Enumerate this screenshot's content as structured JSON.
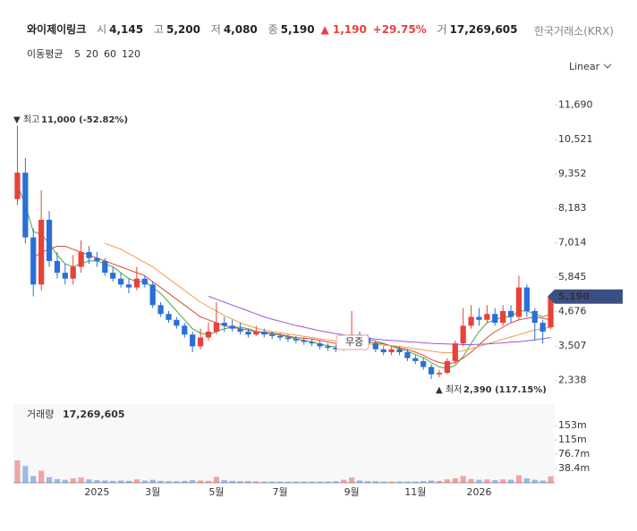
{
  "header": {
    "name": "와이제이링크",
    "open_label": "시",
    "open": "4,145",
    "high_label": "고",
    "high": "5,200",
    "low_label": "저",
    "low": "4,080",
    "close_label": "종",
    "close": "5,190",
    "change": "▲ 1,190",
    "change_pct": "+29.75%",
    "volume_label": "거",
    "volume": "17,269,605",
    "exchange": "한국거래소(KRX)",
    "ma_label": "이동평균",
    "scale": "Linear"
  },
  "chart_data": {
    "type": "candlestick",
    "categories": [
      null,
      null,
      null,
      null,
      null,
      null,
      null,
      null,
      null,
      null,
      "2025",
      null,
      null,
      null,
      null,
      null,
      null,
      "3월",
      null,
      null,
      null,
      null,
      null,
      null,
      null,
      "5월",
      null,
      null,
      null,
      null,
      null,
      null,
      null,
      "7월",
      null,
      null,
      null,
      null,
      null,
      null,
      null,
      null,
      "9월",
      null,
      null,
      null,
      null,
      null,
      null,
      null,
      "11월",
      null,
      null,
      null,
      null,
      null,
      null,
      null,
      "2026",
      null,
      null,
      null,
      null,
      null,
      null,
      null,
      null,
      null
    ],
    "open": [
      8500,
      9400,
      7200,
      5600,
      7800,
      6400,
      6000,
      5800,
      6200,
      6700,
      6500,
      6400,
      6000,
      5800,
      5600,
      5500,
      5800,
      5600,
      4900,
      4600,
      4400,
      4200,
      3900,
      3500,
      3800,
      4000,
      4300,
      4200,
      4100,
      4000,
      3900,
      4000,
      3900,
      3850,
      3800,
      3750,
      3700,
      3650,
      3600,
      3500,
      3450,
      3400,
      3700,
      3900,
      3800,
      3600,
      3400,
      3300,
      3400,
      3300,
      3100,
      3000,
      2800,
      2550,
      2600,
      3000,
      3600,
      4200,
      4500,
      4400,
      4600,
      4300,
      4700,
      4500,
      5500,
      4700,
      4300,
      4145
    ],
    "high": [
      11000,
      9900,
      7500,
      8800,
      8100,
      6700,
      6300,
      6600,
      7100,
      6900,
      6700,
      6500,
      6200,
      6000,
      5800,
      6200,
      5900,
      5700,
      5000,
      4700,
      4500,
      4300,
      4000,
      4100,
      4300,
      5000,
      4500,
      4400,
      4300,
      4100,
      4200,
      4100,
      4000,
      3950,
      3900,
      3850,
      3800,
      3750,
      3700,
      3600,
      3550,
      3800,
      4700,
      4000,
      3900,
      3700,
      3500,
      3500,
      3500,
      3400,
      3200,
      3100,
      2900,
      2700,
      3100,
      3700,
      4800,
      4900,
      4800,
      4900,
      4800,
      4900,
      4900,
      5900,
      5600,
      4800,
      4400,
      5200
    ],
    "low": [
      8300,
      7000,
      5200,
      5400,
      6200,
      5800,
      5600,
      5600,
      6000,
      6300,
      6200,
      5900,
      5700,
      5500,
      5300,
      5400,
      5500,
      4800,
      4500,
      4300,
      4100,
      3800,
      3300,
      3400,
      3700,
      3900,
      4000,
      4000,
      3900,
      3800,
      3850,
      3800,
      3750,
      3700,
      3650,
      3600,
      3550,
      3500,
      3400,
      3350,
      3300,
      3350,
      3600,
      3700,
      3500,
      3300,
      3200,
      3200,
      3200,
      3000,
      2900,
      2700,
      2390,
      2450,
      2550,
      2900,
      3500,
      4100,
      4200,
      4300,
      4200,
      4200,
      4300,
      4400,
      4500,
      3700,
      3600,
      4080
    ],
    "close": [
      9400,
      7200,
      5600,
      7800,
      6400,
      6000,
      5800,
      6200,
      6700,
      6500,
      6400,
      6000,
      5800,
      5600,
      5500,
      5800,
      5600,
      4900,
      4600,
      4400,
      4200,
      3900,
      3500,
      3800,
      4000,
      4300,
      4200,
      4100,
      4000,
      3900,
      4000,
      3900,
      3850,
      3800,
      3750,
      3700,
      3650,
      3600,
      3500,
      3450,
      3400,
      3700,
      3900,
      3800,
      3600,
      3400,
      3300,
      3400,
      3300,
      3100,
      3000,
      2800,
      2550,
      2600,
      3000,
      3600,
      4200,
      4500,
      4400,
      4600,
      4300,
      4700,
      4500,
      5500,
      4700,
      4300,
      4000,
      5190
    ],
    "up_color": "#e8413c",
    "down_color": "#2a6fd8",
    "ylim": [
      1600,
      12350
    ],
    "yticks": [
      {
        "value": 11690,
        "label": "11,690"
      },
      {
        "value": 10521,
        "label": "10,521"
      },
      {
        "value": 9352,
        "label": "9,352"
      },
      {
        "value": 8183,
        "label": "8,183"
      },
      {
        "value": 7014,
        "label": "7,014"
      },
      {
        "value": 5845,
        "label": "5,845"
      },
      {
        "value": 4676,
        "label": "4,676"
      },
      {
        "value": 3507,
        "label": "3,507"
      },
      {
        "value": 2338,
        "label": "2,338"
      }
    ],
    "ma_series": [
      {
        "name": "5",
        "color": "#4aa43e",
        "values": [
          9000,
          8300,
          7400,
          7300,
          7000,
          6600,
          6300,
          6200,
          6300,
          6400,
          6400,
          6300,
          6200,
          6000,
          5800,
          5700,
          5700,
          5500,
          5300,
          5000,
          4700,
          4400,
          4100,
          3950,
          3900,
          4000,
          4100,
          4150,
          4150,
          4100,
          4000,
          3950,
          3920,
          3880,
          3820,
          3760,
          3700,
          3650,
          3580,
          3520,
          3470,
          3520,
          3600,
          3700,
          3740,
          3680,
          3600,
          3500,
          3420,
          3340,
          3220,
          3120,
          2950,
          2800,
          2750,
          2850,
          3150,
          3600,
          4000,
          4300,
          4400,
          4500,
          4500,
          4700,
          4700,
          4600,
          4500,
          4600
        ]
      },
      {
        "name": "20",
        "color": "#e0453a",
        "values": [
          null,
          null,
          6500,
          6700,
          6800,
          6900,
          6900,
          6800,
          6700,
          6600,
          6500,
          6400,
          6300,
          6200,
          6100,
          6000,
          5900,
          5700,
          5500,
          5300,
          5100,
          4900,
          4700,
          4500,
          4400,
          4300,
          4200,
          4150,
          4100,
          4050,
          4000,
          3980,
          3950,
          3900,
          3850,
          3800,
          3780,
          3750,
          3700,
          3650,
          3600,
          3600,
          3620,
          3640,
          3640,
          3620,
          3580,
          3520,
          3450,
          3400,
          3300,
          3200,
          3050,
          2950,
          2900,
          2950,
          3100,
          3300,
          3550,
          3800,
          4000,
          4150,
          4300,
          4400,
          4450,
          4500,
          4450,
          4400
        ]
      },
      {
        "name": "60",
        "color": "#f09a4a",
        "values": [
          null,
          null,
          null,
          null,
          null,
          null,
          null,
          null,
          null,
          null,
          null,
          7000,
          6900,
          6800,
          6650,
          6500,
          6350,
          6200,
          6000,
          5800,
          5600,
          5400,
          5200,
          5000,
          4850,
          4700,
          4550,
          4420,
          4300,
          4200,
          4120,
          4050,
          4000,
          3960,
          3920,
          3880,
          3840,
          3800,
          3760,
          3720,
          3680,
          3650,
          3620,
          3600,
          3580,
          3560,
          3540,
          3520,
          3500,
          3460,
          3420,
          3380,
          3340,
          3300,
          3280,
          3300,
          3350,
          3420,
          3500,
          3580,
          3660,
          3740,
          3820,
          3900,
          3980,
          4050,
          4100,
          4150
        ]
      },
      {
        "name": "120",
        "color": "#9b59d6",
        "values": [
          null,
          null,
          null,
          null,
          null,
          null,
          null,
          null,
          null,
          null,
          null,
          null,
          null,
          null,
          null,
          null,
          null,
          null,
          null,
          null,
          null,
          null,
          null,
          null,
          5200,
          5100,
          5000,
          4900,
          4800,
          4700,
          4600,
          4500,
          4420,
          4350,
          4280,
          4210,
          4150,
          4090,
          4030,
          3980,
          3930,
          3890,
          3850,
          3810,
          3780,
          3750,
          3720,
          3700,
          3680,
          3660,
          3640,
          3620,
          3600,
          3590,
          3580,
          3570,
          3560,
          3560,
          3570,
          3580,
          3600,
          3620,
          3640,
          3660,
          3690,
          3720,
          3760,
          3800
        ]
      }
    ],
    "last_price": {
      "value": 5190,
      "label": "5,190"
    },
    "last_price_color": "#3c4f84",
    "high_note": {
      "label": "▼ 최고",
      "text": "11,000 (-52.82%)"
    },
    "low_note": {
      "label": "▲ 최저",
      "text": "2,390 (117.15%)"
    },
    "event_note": "무증",
    "volume": {
      "title": "거래량",
      "total": "17,269,605",
      "values": [
        60000000,
        45000000,
        18000000,
        32000000,
        15000000,
        10000000,
        8000000,
        12000000,
        14000000,
        9000000,
        7000000,
        6000000,
        5000000,
        6000000,
        5000000,
        9000000,
        6000000,
        8000000,
        5000000,
        4000000,
        4000000,
        5000000,
        7000000,
        6000000,
        5000000,
        16000000,
        7000000,
        5000000,
        4000000,
        4000000,
        4000000,
        3000000,
        3000000,
        3000000,
        3000000,
        3000000,
        3000000,
        3000000,
        3000000,
        3000000,
        4000000,
        8000000,
        14000000,
        6000000,
        4000000,
        4000000,
        3000000,
        3000000,
        3000000,
        3000000,
        3000000,
        4000000,
        6000000,
        5000000,
        9000000,
        12000000,
        18000000,
        10000000,
        8000000,
        9000000,
        7000000,
        9000000,
        8000000,
        20000000,
        12000000,
        8000000,
        6000000,
        17269605
      ],
      "ylim": [
        0,
        211000000
      ],
      "yticks": [
        {
          "value": 153000000,
          "label": "153m"
        },
        {
          "value": 115000000,
          "label": "115m"
        },
        {
          "value": 76700000,
          "label": "76.7m"
        },
        {
          "value": 38400000,
          "label": "38.4m"
        }
      ]
    }
  }
}
